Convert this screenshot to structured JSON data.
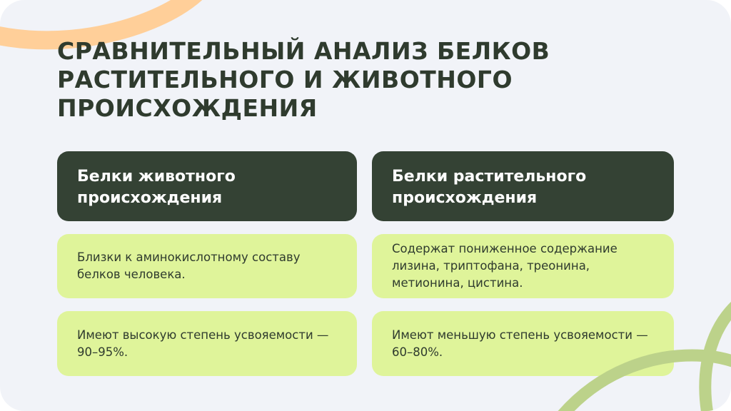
{
  "title": "Сравнительный анализ белков растительного и животного происхождения",
  "columns": [
    {
      "header": "Белки животного происхождения",
      "items": [
        "Близки к аминокислотному составу белков человека.",
        "Имеют высокую степень усвояемости — 90–95%."
      ]
    },
    {
      "header": "Белки растительного происхождения",
      "items": [
        "Содержат пониженное содержание лизина, триптофана, треонина, метионина, цистина.",
        "Имеют меньшую степень усвояемости — 60–80%."
      ]
    }
  ],
  "colors": {
    "background": "#f1f3f8",
    "header": "#344234",
    "card": "#dff49a",
    "accent_orange": "#ffcf99",
    "accent_green": "#bcd28a"
  }
}
